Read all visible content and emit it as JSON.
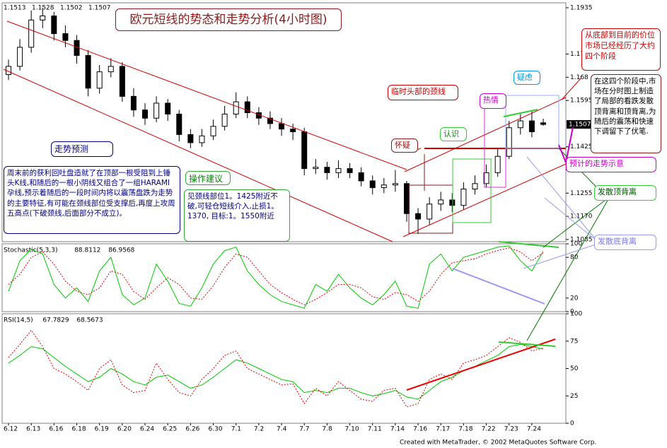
{
  "chart_data": [
    {
      "type": "candlestick",
      "title": "欧元短线的势态和走势分析(4小时图)",
      "categories": [
        "6.12",
        null,
        "6.13",
        null,
        "6.16",
        null,
        "6.18",
        null,
        "6.19",
        null,
        "6.20",
        null,
        "6.24",
        null,
        "6.25",
        null,
        "6.26",
        null,
        "6.30",
        null,
        "7.1",
        null,
        "7.2",
        null,
        "7.4",
        null,
        "7.7",
        null,
        "7.8",
        null,
        "7.10",
        null,
        "7.11",
        null,
        "7.14",
        null,
        "7.16",
        null,
        "7.17",
        null,
        "7.18",
        null,
        "7.22",
        null,
        "7.23",
        null,
        "7.24",
        null
      ],
      "open": [
        1.169,
        1.172,
        1.179,
        1.189,
        1.1905,
        1.184,
        1.1815,
        1.176,
        1.164,
        1.17,
        1.172,
        1.161,
        1.156,
        1.153,
        1.1585,
        1.1545,
        1.147,
        1.144,
        1.1465,
        1.15,
        1.1545,
        1.159,
        1.155,
        1.153,
        1.151,
        1.149,
        1.148,
        1.1345,
        1.135,
        1.133,
        1.1345,
        1.133,
        1.13,
        1.1275,
        1.1285,
        1.129,
        1.118,
        1.116,
        1.1215,
        1.123,
        1.121,
        1.127,
        1.129,
        1.133,
        1.139,
        1.1495,
        1.152,
        1.1513
      ],
      "high": [
        1.1745,
        1.182,
        1.1925,
        1.1935,
        1.192,
        1.187,
        1.1835,
        1.178,
        1.1725,
        1.175,
        1.1735,
        1.164,
        1.1585,
        1.161,
        1.16,
        1.156,
        1.149,
        1.149,
        1.1525,
        1.1575,
        1.1625,
        1.161,
        1.157,
        1.1555,
        1.153,
        1.151,
        1.1495,
        1.138,
        1.137,
        1.1375,
        1.1365,
        1.135,
        1.132,
        1.131,
        1.134,
        1.13,
        1.12,
        1.124,
        1.126,
        1.1255,
        1.1295,
        1.132,
        1.136,
        1.142,
        1.152,
        1.1545,
        1.1555,
        1.1528
      ],
      "low": [
        1.167,
        1.1705,
        1.177,
        1.186,
        1.1815,
        1.179,
        1.173,
        1.161,
        1.162,
        1.168,
        1.159,
        1.1535,
        1.1505,
        1.1515,
        1.152,
        1.1445,
        1.142,
        1.1425,
        1.145,
        1.1485,
        1.153,
        1.153,
        1.1505,
        1.149,
        1.1465,
        1.145,
        1.132,
        1.1325,
        1.1305,
        1.131,
        1.131,
        1.128,
        1.125,
        1.1255,
        1.126,
        1.115,
        1.1105,
        1.114,
        1.119,
        1.1185,
        1.1195,
        1.125,
        1.1275,
        1.1315,
        1.138,
        1.147,
        1.146,
        1.1502
      ],
      "close": [
        1.172,
        1.179,
        1.189,
        1.1905,
        1.184,
        1.1815,
        1.176,
        1.164,
        1.17,
        1.172,
        1.161,
        1.156,
        1.153,
        1.1585,
        1.1545,
        1.147,
        1.144,
        1.1465,
        1.15,
        1.1545,
        1.159,
        1.155,
        1.153,
        1.151,
        1.149,
        1.148,
        1.1345,
        1.135,
        1.133,
        1.1345,
        1.133,
        1.13,
        1.1275,
        1.1285,
        1.129,
        1.118,
        1.116,
        1.1215,
        1.123,
        1.121,
        1.127,
        1.129,
        1.133,
        1.139,
        1.1495,
        1.152,
        1.148,
        1.1507
      ],
      "color": "#000000",
      "up_fill": "#ffffff",
      "ylim": [
        1.1077,
        1.1953
      ],
      "yticks": [
        1.1935,
        {
          "value": 1.1765,
          "label": "1.176"
        },
        1.168,
        1.1595,
        1.1425,
        {
          "value": 1.134,
          "label": "1.1340"
        },
        1.1255,
        {
          "value": 1.117,
          "label": "1.1170"
        },
        1.1085
      ],
      "grid": false,
      "annotations": [
        "从底部到目前的价位市场已经经历了大约四个阶段",
        "在这四个阶段中,市场在分时图上制造了局部的看跌发散顶背离和顶背离,为随后的震荡和快速下调留下了伏笔.",
        "临时头部的颈线",
        "热情",
        "疑虑",
        "认识",
        "怀疑",
        "预计的走势示意",
        "发散顶背离",
        "发散底背离",
        "走势预测",
        "周末前的获利回吐盘造就了在顶部一根受阻到上锤头K线,和随后的一根小阴线又组合了一组HARAMI 孕线,预示着随后的一段时间内将以震荡盘跌为走势的主要特征,有可能在颈线部位受支撑后,再度上攻周五高点(下破颈线,后面部分不成立)。",
        "操作建议",
        "见颈线部位1。1425附近不破,可轻仓短线介入,止损1。1370, 目标:1。1550附近"
      ]
    },
    {
      "type": "line",
      "label": "Stochastic(5,3,3)",
      "series": [
        {
          "color": "#00cc00",
          "dash": false,
          "values": [
            30,
            75,
            92,
            85,
            40,
            20,
            35,
            15,
            60,
            80,
            25,
            10,
            20,
            70,
            45,
            12,
            8,
            35,
            70,
            90,
            95,
            60,
            40,
            25,
            15,
            10,
            5,
            40,
            30,
            55,
            35,
            20,
            10,
            25,
            45,
            8,
            5,
            70,
            85,
            60,
            80,
            85,
            90,
            95,
            97,
            75,
            60,
            88.8112
          ]
        },
        {
          "color": "#dd0000",
          "dash": true,
          "values": [
            40,
            55,
            80,
            88,
            70,
            45,
            30,
            25,
            35,
            60,
            55,
            30,
            18,
            35,
            50,
            40,
            20,
            18,
            38,
            65,
            85,
            80,
            60,
            40,
            28,
            18,
            10,
            18,
            28,
            40,
            40,
            35,
            22,
            18,
            28,
            25,
            15,
            30,
            55,
            72,
            75,
            78,
            85,
            90,
            94,
            88,
            75,
            86.9568
          ]
        }
      ],
      "ylim": [
        0,
        100
      ],
      "yticks": [
        0,
        20,
        80,
        100
      ]
    },
    {
      "type": "line",
      "label": "RSI(14,5)",
      "series": [
        {
          "color": "#00cc00",
          "dash": false,
          "values": [
            55,
            62,
            70,
            68,
            60,
            52,
            45,
            38,
            42,
            50,
            45,
            38,
            35,
            42,
            44,
            38,
            32,
            35,
            42,
            50,
            58,
            55,
            50,
            45,
            40,
            38,
            28,
            30,
            28,
            32,
            32,
            28,
            25,
            27,
            30,
            24,
            22,
            30,
            38,
            42,
            48,
            52,
            57,
            62,
            70,
            72,
            70,
            67.7829
          ]
        },
        {
          "color": "#dd0000",
          "dash": true,
          "values": [
            60,
            72,
            85,
            70,
            50,
            45,
            38,
            30,
            50,
            58,
            35,
            28,
            30,
            55,
            40,
            28,
            25,
            40,
            50,
            62,
            66,
            50,
            45,
            40,
            35,
            36,
            18,
            32,
            25,
            38,
            30,
            22,
            20,
            30,
            32,
            15,
            18,
            40,
            45,
            40,
            55,
            58,
            62,
            70,
            78,
            74,
            66,
            68.5673
          ]
        }
      ],
      "ylim": [
        0,
        100
      ],
      "yticks": [
        0,
        25,
        50,
        75,
        100
      ]
    }
  ],
  "footer": "Created with MetaTrader, © 2002 MetaQuotes Software Corp."
}
